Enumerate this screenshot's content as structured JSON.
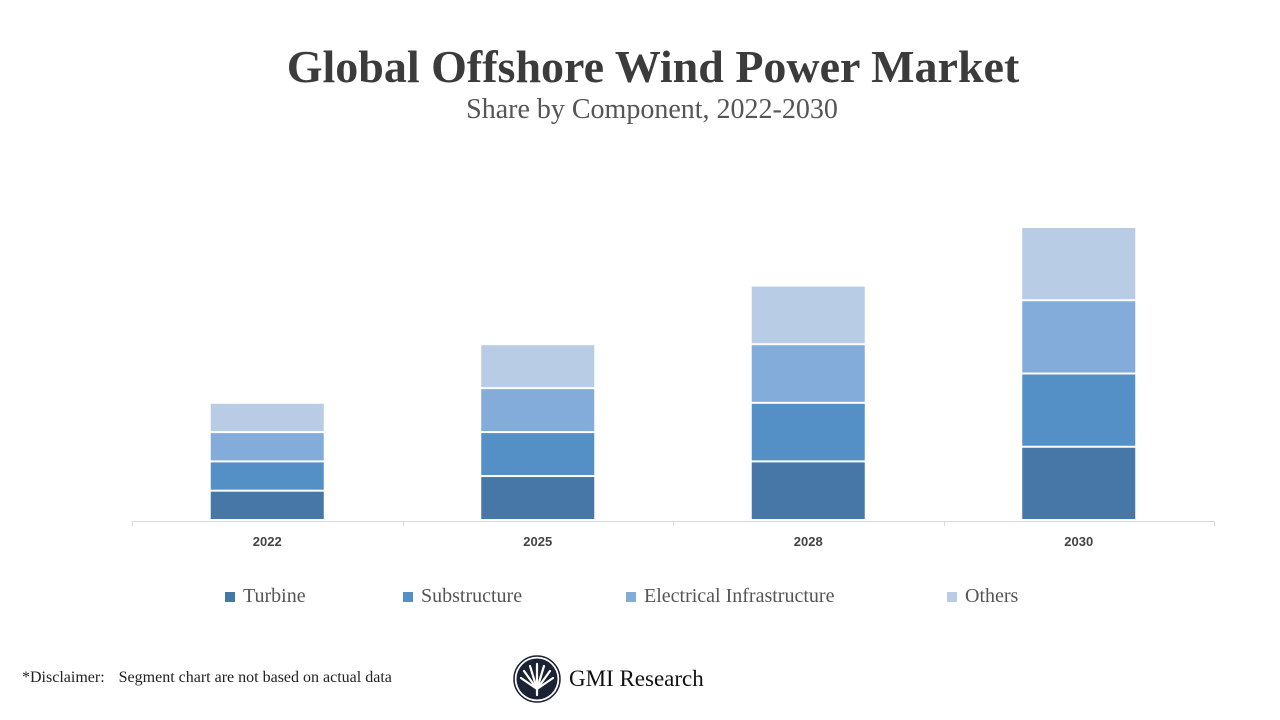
{
  "chart_data": {
    "type": "bar",
    "stacked": true,
    "title": "Global Offshore Wind Power Market",
    "subtitle": "Share by Component, 2022-2030",
    "categories": [
      "2022",
      "2025",
      "2028",
      "2030"
    ],
    "series": [
      {
        "name": "Turbine",
        "color": "#4677a6",
        "values": [
          1,
          1.5,
          2,
          2.5
        ]
      },
      {
        "name": "Substructure",
        "color": "#5490c6",
        "values": [
          1,
          1.5,
          2,
          2.5
        ]
      },
      {
        "name": "Electrical Infrastructure",
        "color": "#83acdb",
        "values": [
          1,
          1.5,
          2,
          2.5
        ]
      },
      {
        "name": "Others",
        "color": "#b8cce6",
        "values": [
          1,
          1.5,
          2,
          2.5
        ]
      }
    ],
    "y_axis_shown": false,
    "grid": false,
    "legend_position": "bottom"
  },
  "footer": {
    "disclaimer_label": "*Disclaimer:",
    "disclaimer_text": "Segment chart are not based on actual data",
    "brand": "GMI Research"
  }
}
